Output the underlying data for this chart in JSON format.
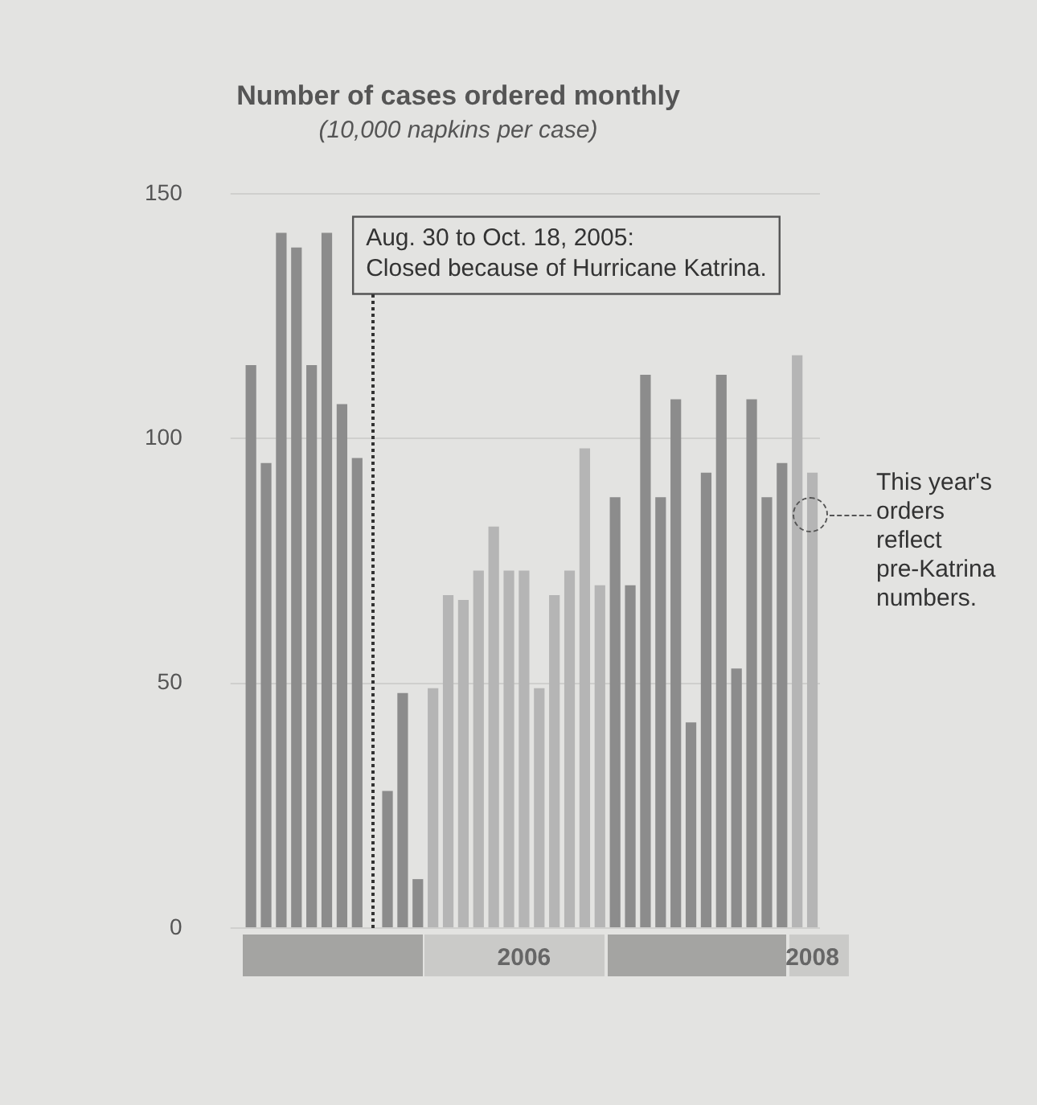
{
  "chart_data": {
    "type": "bar",
    "title": "Number of cases ordered monthly",
    "subtitle": "(10,000 napkins per case)",
    "categories": [
      null,
      null,
      null,
      null,
      null,
      null,
      null,
      null,
      null,
      null,
      null,
      null,
      null,
      null,
      null,
      null,
      null,
      null,
      "2006",
      null,
      null,
      null,
      null,
      null,
      null,
      null,
      null,
      null,
      null,
      null,
      null,
      null,
      null,
      null,
      null,
      null,
      null,
      "2008"
    ],
    "values": [
      115,
      95,
      142,
      139,
      115,
      142,
      107,
      96,
      null,
      28,
      48,
      10,
      49,
      68,
      67,
      73,
      82,
      73,
      73,
      49,
      68,
      73,
      98,
      70,
      88,
      70,
      113,
      88,
      108,
      42,
      93,
      113,
      53,
      108,
      88,
      95,
      117,
      93
    ],
    "colors": [
      "#8c8c8c",
      "#8c8c8c",
      "#8c8c8c",
      "#8c8c8c",
      "#8c8c8c",
      "#8c8c8c",
      "#8c8c8c",
      "#8c8c8c",
      "#8c8c8c",
      "#8c8c8c",
      "#8c8c8c",
      "#8c8c8c",
      "#b5b5b5",
      "#b5b5b5",
      "#b5b5b5",
      "#b5b5b5",
      "#b5b5b5",
      "#b5b5b5",
      "#b5b5b5",
      "#b5b5b5",
      "#b5b5b5",
      "#b5b5b5",
      "#b5b5b5",
      "#b5b5b5",
      "#8c8c8c",
      "#8c8c8c",
      "#8c8c8c",
      "#8c8c8c",
      "#8c8c8c",
      "#8c8c8c",
      "#8c8c8c",
      "#8c8c8c",
      "#8c8c8c",
      "#8c8c8c",
      "#8c8c8c",
      "#8c8c8c",
      "#b5b5b5",
      "#b5b5b5"
    ],
    "ylim": [
      0,
      150
    ],
    "yticks": [
      0,
      50,
      100,
      150
    ],
    "grid": "y",
    "legend": false,
    "annotations": [
      "Aug. 30 to Oct. 18, 2005:\nClosed because of Hurricane Katrina.",
      "This year's\norders\nreflect\npre-Katrina\nnumbers."
    ]
  }
}
